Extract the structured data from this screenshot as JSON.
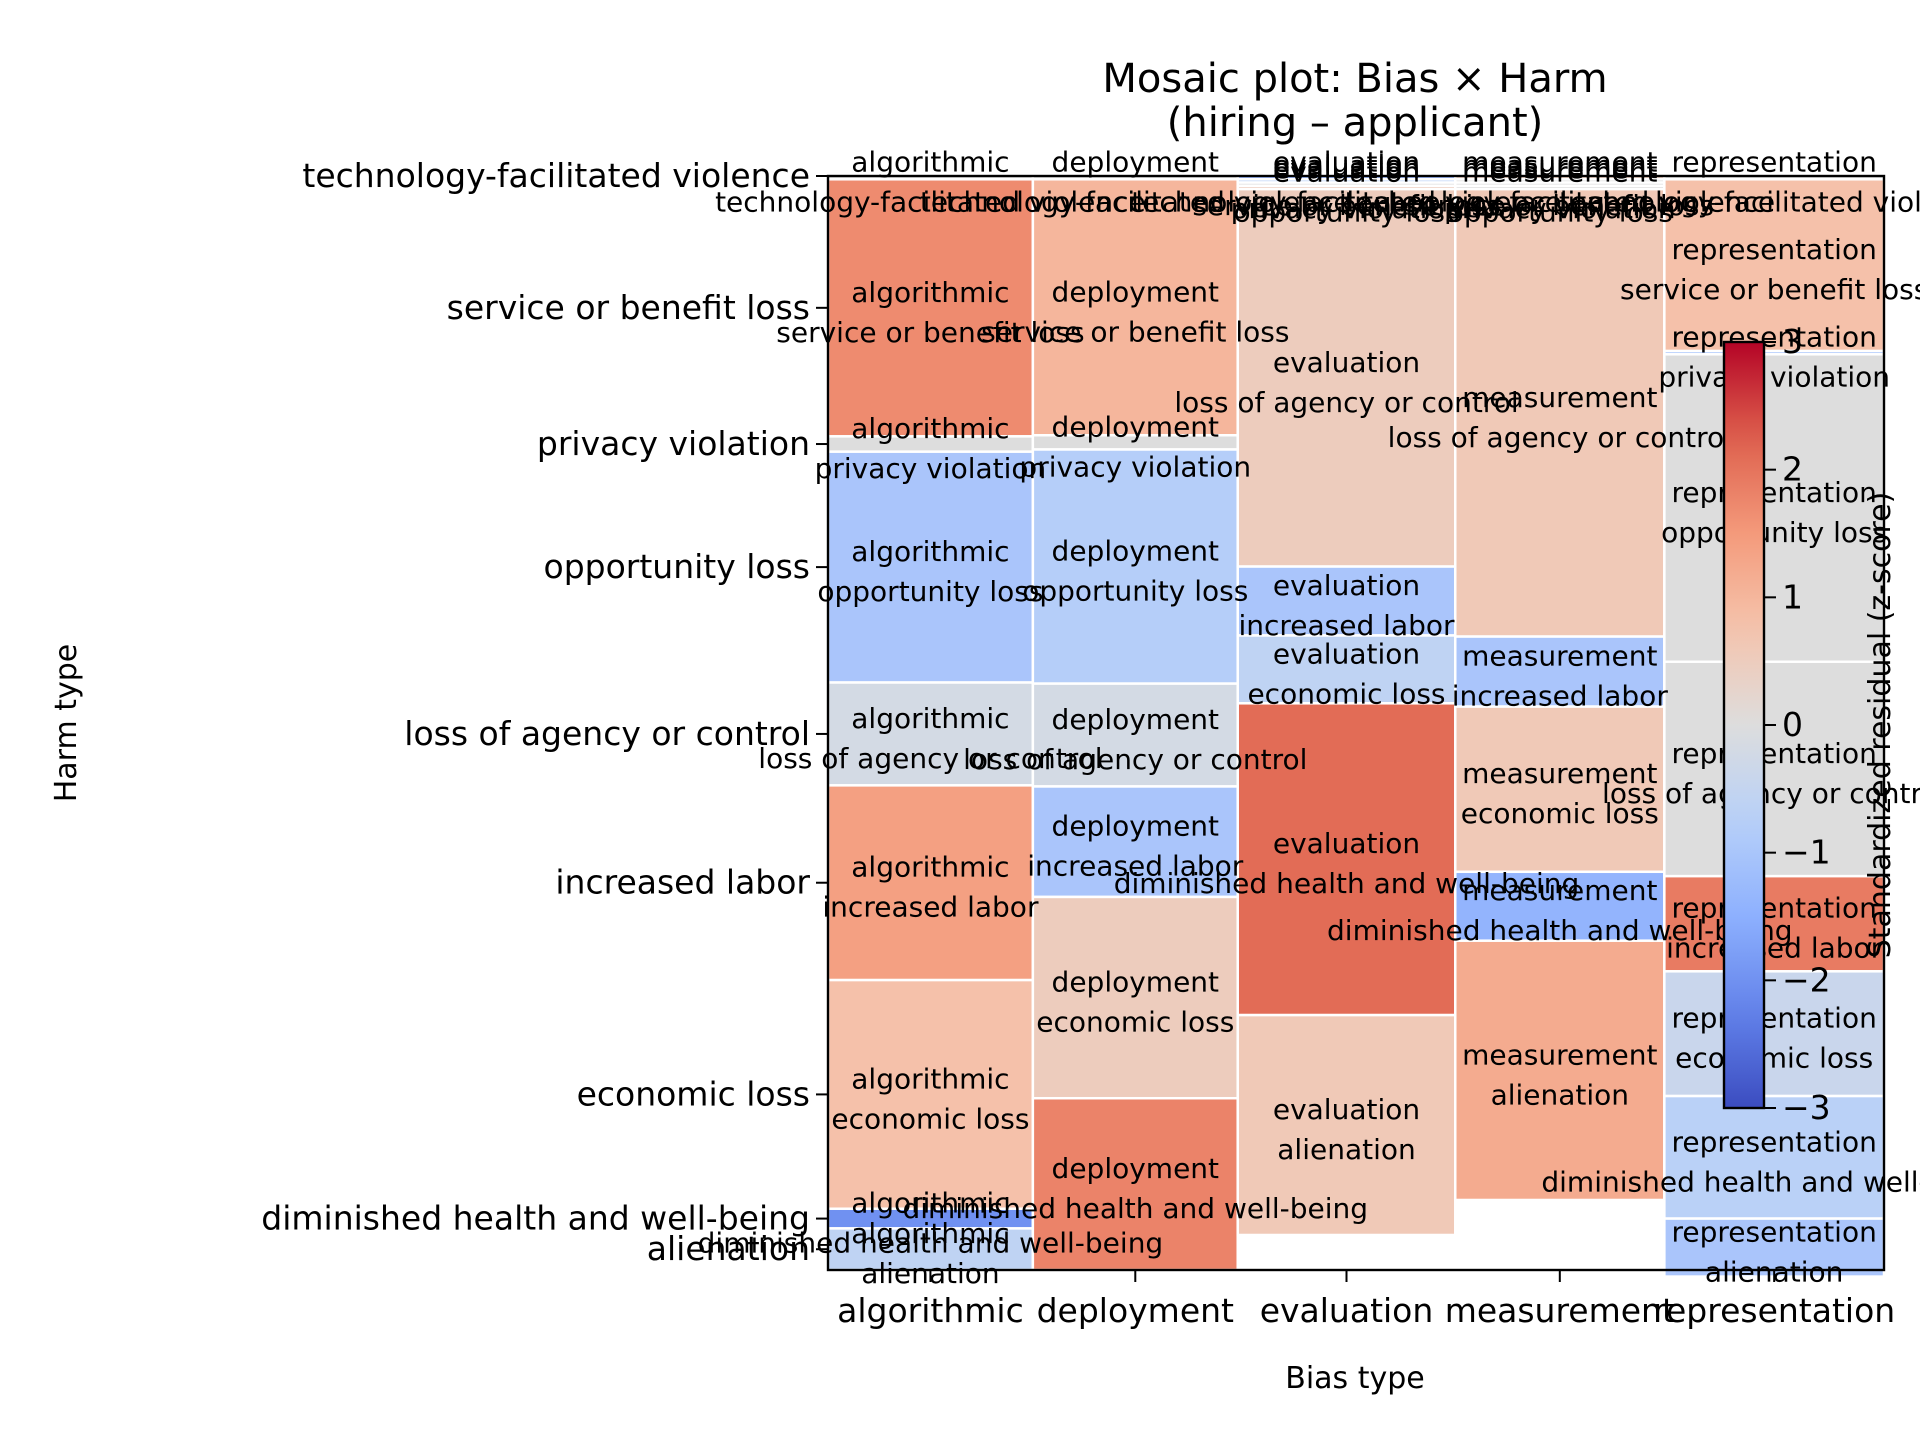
{
  "chart_data": {
    "type": "mosaic",
    "title": "Mosaic plot: Bias × Harm\n(hiring – applicant)",
    "xlabel": "Bias type",
    "ylabel": "Harm type",
    "colorbar": {
      "label": "Standardized residual (z-score)",
      "range": [
        -3,
        3
      ],
      "ticks": [
        3,
        2,
        1,
        0,
        -1,
        -2,
        -3
      ],
      "colormap": "coolwarm"
    },
    "categories": [
      "algorithmic",
      "deployment",
      "evaluation",
      "measurement",
      "representation"
    ],
    "harm_types": [
      "technology-facilitated violence",
      "service or benefit loss",
      "privacy violation",
      "opportunity loss",
      "loss of agency or control",
      "increased labor",
      "economic loss",
      "diminished health and well-being",
      "alienation"
    ],
    "column_widths": [
      0.194,
      0.194,
      0.206,
      0.198,
      0.208
    ],
    "series": [
      {
        "category": "algorithmic",
        "shares": [
          0.003,
          0.235,
          0.014,
          0.211,
          0.094,
          0.178,
          0.209,
          0.018,
          0.038
        ],
        "residuals": [
          0.0,
          1.7,
          0.0,
          -1.0,
          -0.2,
          1.4,
          0.8,
          -2.0,
          -0.6
        ]
      },
      {
        "category": "deployment",
        "shares": [
          0.003,
          0.234,
          0.013,
          0.214,
          0.094,
          0.101,
          0.184,
          0.157,
          0.0
        ],
        "residuals": [
          0.0,
          1.0,
          0.0,
          -0.8,
          -0.2,
          -1.0,
          0.5,
          1.8,
          0.0
        ]
      },
      {
        "category": "evaluation",
        "shares": [
          0.003,
          0.003,
          0.003,
          0.003,
          0.345,
          0.063,
          0.062,
          0.285,
          0.201
        ],
        "residuals": [
          -1.5,
          -0.7,
          0.0,
          0.5,
          0.5,
          -1.0,
          -0.6,
          2.1,
          0.6
        ]
      },
      {
        "category": "measurement",
        "shares": [
          0.003,
          0.003,
          0.003,
          0.003,
          0.409,
          0.064,
          0.151,
          0.063,
          0.237
        ],
        "residuals": [
          0.5,
          0.0,
          0.0,
          0.0,
          0.6,
          -1.0,
          0.6,
          -1.4,
          1.2
        ]
      },
      {
        "category": "representation",
        "shares": [
          0.003,
          0.157,
          0.003,
          0.281,
          0.196,
          0.087,
          0.114,
          0.112,
          0.053
        ],
        "residuals": [
          0.0,
          0.8,
          -1.0,
          0.0,
          0.0,
          1.9,
          -0.4,
          -0.7,
          -1.0
        ]
      }
    ],
    "legend": "colorbar right",
    "grid": false
  }
}
